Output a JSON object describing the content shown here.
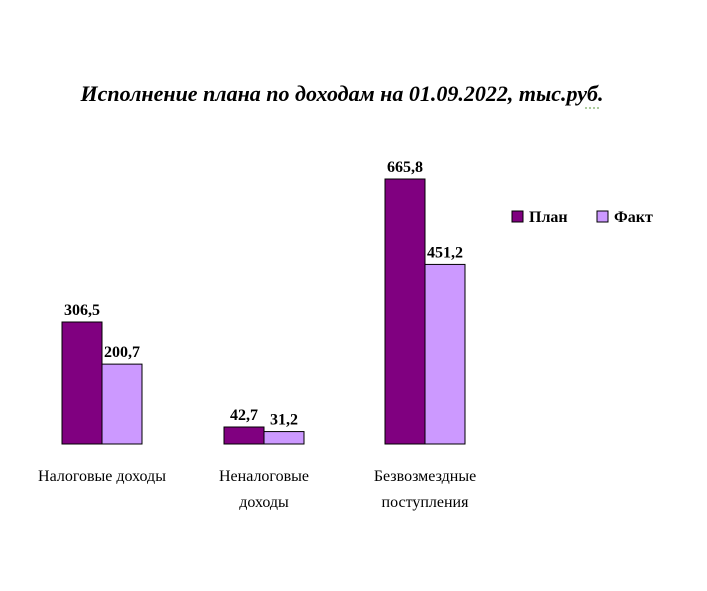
{
  "chart_data": {
    "type": "bar",
    "title": "Исполнение плана по доходам на 01.09.2022, тыс.руб.",
    "categories": [
      [
        "Налоговые доходы"
      ],
      [
        "Неналоговые",
        "доходы"
      ],
      [
        "Безвозмездные",
        "поступления"
      ]
    ],
    "series": [
      {
        "name": "План",
        "color": "#800080",
        "values": [
          306.5,
          42.7,
          665.8
        ],
        "labels": [
          "306,5",
          "42,7",
          "665,8"
        ]
      },
      {
        "name": "Факт",
        "color": "#CC99FF",
        "values": [
          200.7,
          31.2,
          451.2
        ],
        "labels": [
          "200,7",
          "31,2",
          "451,2"
        ]
      }
    ],
    "ylim": [
      0,
      665.8
    ],
    "grid": false,
    "legend_position": "right"
  }
}
